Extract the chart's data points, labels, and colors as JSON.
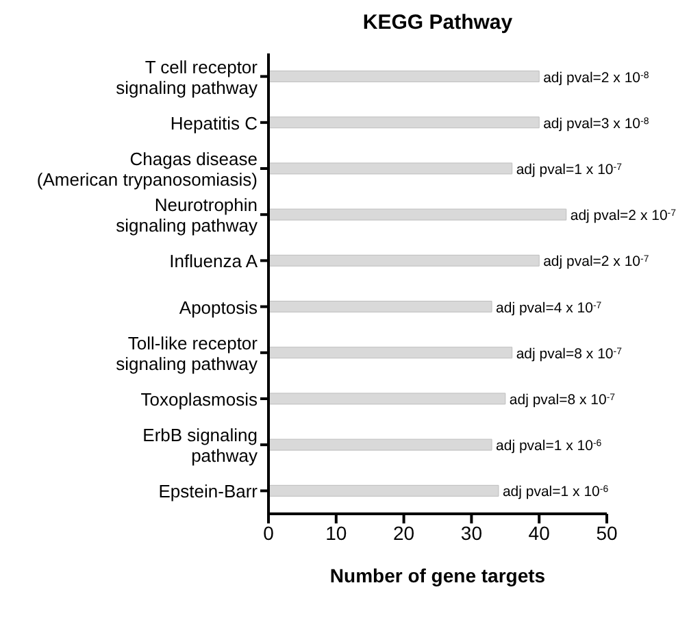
{
  "chart_data": {
    "type": "bar",
    "orientation": "horizontal",
    "title": "KEGG Pathway",
    "xlabel": "Number of gene targets",
    "categories": [
      "T cell receptor signaling pathway",
      "Hepatitis C",
      "Chagas disease (American trypanosomiasis)",
      "Neurotrophin signaling pathway",
      "Influenza A",
      "Apoptosis",
      "Toll-like receptor signaling pathway",
      "Toxoplasmosis",
      "ErbB signaling pathway",
      "Epstein-Barr"
    ],
    "values": [
      40,
      40,
      36,
      44,
      40,
      33,
      36,
      35,
      33,
      34
    ],
    "value_labels": [
      "adj pval=2 x 10$^{-8}$",
      "adj pval=3 x 10$^{-8}$",
      "adj pval=1 x 10$^{-7}$",
      "adj pval=2 x 10$^{-7}$",
      "adj pval=2 x 10$^{-7}$",
      "adj pval=4 x 10$^{-7}$",
      "adj pval=8 x 10$^{-7}$",
      "adj pval=8 x 10$^{-7}$",
      "adj pval=1 x 10$^{-6}$",
      "adj pval=1 x 10$^{-6}$"
    ],
    "color": "#d9d9d9",
    "xlim": [
      0,
      50
    ],
    "xticks": [
      0,
      10,
      20,
      30,
      40,
      50
    ],
    "grid": false,
    "legend": false
  }
}
